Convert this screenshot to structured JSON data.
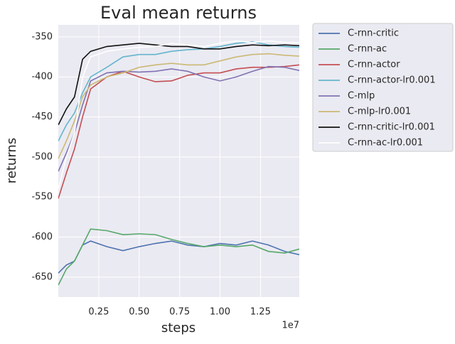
{
  "chart_data": {
    "type": "line",
    "title": "Eval mean returns",
    "x_label": "steps",
    "y_label": "returns",
    "x_offset_label": "1e7",
    "x": [
      0,
      0.05,
      0.1,
      0.15,
      0.2,
      0.3,
      0.4,
      0.5,
      0.6,
      0.7,
      0.8,
      0.9,
      1.0,
      1.1,
      1.2,
      1.3,
      1.4,
      1.49
    ],
    "series": [
      {
        "name": "C-rnn-critic",
        "color": "#4c72b0",
        "values": [
          -645,
          -635,
          -630,
          -610,
          -605,
          -612,
          -617,
          -612,
          -608,
          -605,
          -610,
          -612,
          -608,
          -610,
          -605,
          -610,
          -618,
          -622
        ]
      },
      {
        "name": "C-rnn-ac",
        "color": "#55a868",
        "values": [
          -660,
          -640,
          -630,
          -610,
          -590,
          -592,
          -597,
          -596,
          -597,
          -603,
          -608,
          -612,
          -610,
          -612,
          -610,
          -618,
          -620,
          -615
        ]
      },
      {
        "name": "C-rnn-actor",
        "color": "#c44e52",
        "values": [
          -552,
          -520,
          -490,
          -450,
          -415,
          -400,
          -393,
          -400,
          -406,
          -405,
          -398,
          -395,
          -395,
          -390,
          -388,
          -388,
          -387,
          -385
        ]
      },
      {
        "name": "C-rnn-actor-lr0.001",
        "color": "#64b5cd",
        "values": [
          -480,
          -460,
          -445,
          -420,
          -400,
          -388,
          -375,
          -372,
          -372,
          -368,
          -366,
          -365,
          -362,
          -358,
          -356,
          -360,
          -362,
          -363
        ]
      },
      {
        "name": "C-mlp",
        "color": "#8172b2",
        "values": [
          -518,
          -495,
          -470,
          -435,
          -405,
          -395,
          -393,
          -394,
          -393,
          -390,
          -393,
          -400,
          -405,
          -400,
          -393,
          -387,
          -388,
          -392
        ]
      },
      {
        "name": "C-mlp-lr0.001",
        "color": "#ccb974",
        "values": [
          -502,
          -480,
          -455,
          -425,
          -410,
          -400,
          -395,
          -388,
          -385,
          -383,
          -385,
          -385,
          -380,
          -375,
          -372,
          -371,
          -373,
          -374
        ]
      },
      {
        "name": "C-rnn-critic-lr0.001",
        "color": "#111111",
        "values": [
          -460,
          -440,
          -425,
          -378,
          -368,
          -362,
          -360,
          -358,
          -360,
          -362,
          -362,
          -365,
          -365,
          -362,
          -360,
          -361,
          -360,
          -361
        ]
      },
      {
        "name": "C-rnn-ac-lr0.001",
        "color": "#ffffff",
        "values": [
          -540,
          -500,
          -470,
          -400,
          -375,
          -368,
          -365,
          -363,
          -362,
          -358,
          -360,
          -362,
          -358,
          -355,
          -357,
          -355,
          -357,
          -357
        ]
      }
    ],
    "xlim": [
      0,
      1.49
    ],
    "ylim": [
      -675,
      -335
    ],
    "xticks": [
      0.25,
      {
        "value": 0.5,
        "label": "0.50"
      },
      0.75,
      {
        "value": 1,
        "label": "1.00"
      },
      1.25
    ],
    "yticks": [
      -650,
      -600,
      -550,
      -500,
      -450,
      -400,
      -350
    ],
    "grid": true,
    "legend": "outside-upper-right"
  }
}
